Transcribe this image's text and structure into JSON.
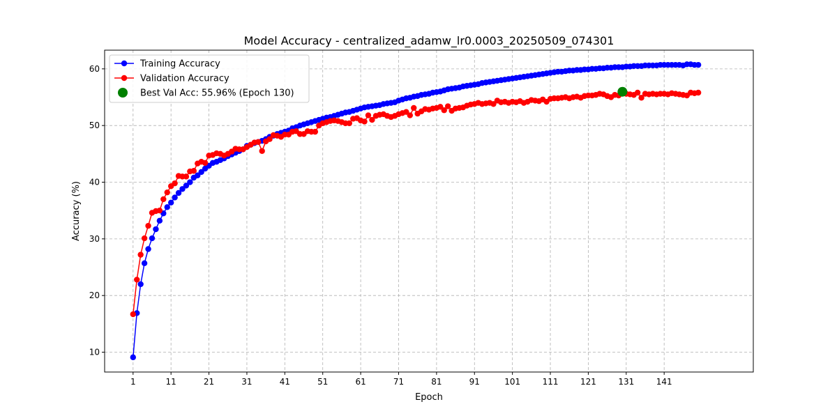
{
  "chart_data": {
    "type": "line",
    "title": "Model Accuracy - centralized_adamw_lr0.0003_20250509_074301",
    "xlabel": "Epoch",
    "ylabel": "Accuracy (%)",
    "xlim": [
      -6.5,
      164.5
    ],
    "ylim": [
      6.5,
      63.3
    ],
    "xticks": [
      1,
      11,
      21,
      31,
      41,
      51,
      61,
      71,
      81,
      91,
      101,
      111,
      121,
      131,
      141
    ],
    "yticks": [
      10,
      20,
      30,
      40,
      50,
      60
    ],
    "grid": true,
    "legend_position": "top-left",
    "series": [
      {
        "name": "Training Accuracy",
        "color": "#0000ff",
        "x": [
          1,
          2,
          3,
          4,
          5,
          6,
          7,
          8,
          9,
          10,
          11,
          12,
          13,
          14,
          15,
          16,
          17,
          18,
          19,
          20,
          21,
          22,
          23,
          24,
          25,
          26,
          27,
          28,
          29,
          30,
          31,
          32,
          33,
          34,
          35,
          36,
          37,
          38,
          39,
          40,
          41,
          42,
          43,
          44,
          45,
          46,
          47,
          48,
          49,
          50,
          51,
          52,
          53,
          54,
          55,
          56,
          57,
          58,
          59,
          60,
          61,
          62,
          63,
          64,
          65,
          66,
          67,
          68,
          69,
          70,
          71,
          72,
          73,
          74,
          75,
          76,
          77,
          78,
          79,
          80,
          81,
          82,
          83,
          84,
          85,
          86,
          87,
          88,
          89,
          90,
          91,
          92,
          93,
          94,
          95,
          96,
          97,
          98,
          99,
          100,
          101,
          102,
          103,
          104,
          105,
          106,
          107,
          108,
          109,
          110,
          111,
          112,
          113,
          114,
          115,
          116,
          117,
          118,
          119,
          120,
          121,
          122,
          123,
          124,
          125,
          126,
          127,
          128,
          129,
          130,
          131,
          132,
          133,
          134,
          135,
          136,
          137,
          138,
          139,
          140,
          141,
          142,
          143,
          144,
          145,
          146,
          147,
          148,
          149,
          150
        ],
        "values": [
          9.1,
          16.9,
          22.0,
          25.7,
          28.2,
          30.1,
          31.7,
          33.2,
          34.5,
          35.6,
          36.4,
          37.3,
          38.1,
          38.8,
          39.4,
          40.0,
          40.8,
          41.2,
          41.8,
          42.4,
          42.9,
          43.4,
          43.6,
          43.9,
          44.2,
          44.6,
          44.9,
          45.2,
          45.5,
          45.8,
          46.4,
          46.6,
          46.9,
          47.1,
          47.3,
          47.6,
          48.0,
          48.2,
          48.5,
          48.7,
          48.9,
          49.1,
          49.5,
          49.7,
          50.0,
          50.2,
          50.4,
          50.6,
          50.8,
          51.0,
          51.2,
          51.4,
          51.5,
          51.7,
          51.9,
          52.1,
          52.3,
          52.4,
          52.6,
          52.8,
          53.0,
          53.2,
          53.3,
          53.4,
          53.5,
          53.6,
          53.8,
          53.9,
          54.0,
          54.1,
          54.4,
          54.6,
          54.8,
          54.9,
          55.1,
          55.2,
          55.4,
          55.5,
          55.6,
          55.8,
          55.9,
          56.0,
          56.2,
          56.4,
          56.5,
          56.6,
          56.7,
          56.9,
          57.0,
          57.1,
          57.2,
          57.3,
          57.5,
          57.6,
          57.7,
          57.8,
          57.9,
          58.0,
          58.1,
          58.2,
          58.3,
          58.4,
          58.5,
          58.6,
          58.7,
          58.8,
          58.9,
          59.0,
          59.1,
          59.2,
          59.3,
          59.4,
          59.5,
          59.5,
          59.6,
          59.7,
          59.7,
          59.8,
          59.8,
          59.9,
          59.9,
          60.0,
          60.0,
          60.1,
          60.1,
          60.2,
          60.2,
          60.3,
          60.3,
          60.3,
          60.4,
          60.4,
          60.5,
          60.5,
          60.5,
          60.6,
          60.6,
          60.6,
          60.6,
          60.7,
          60.7,
          60.7,
          60.7,
          60.7,
          60.7,
          60.6,
          60.8,
          60.8,
          60.7,
          60.7
        ]
      },
      {
        "name": "Validation Accuracy",
        "color": "#ff0000",
        "x": [
          1,
          2,
          3,
          4,
          5,
          6,
          7,
          8,
          9,
          10,
          11,
          12,
          13,
          14,
          15,
          16,
          17,
          18,
          19,
          20,
          21,
          22,
          23,
          24,
          25,
          26,
          27,
          28,
          29,
          30,
          31,
          32,
          33,
          34,
          35,
          36,
          37,
          38,
          39,
          40,
          41,
          42,
          43,
          44,
          45,
          46,
          47,
          48,
          49,
          50,
          51,
          52,
          53,
          54,
          55,
          56,
          57,
          58,
          59,
          60,
          61,
          62,
          63,
          64,
          65,
          66,
          67,
          68,
          69,
          70,
          71,
          72,
          73,
          74,
          75,
          76,
          77,
          78,
          79,
          80,
          81,
          82,
          83,
          84,
          85,
          86,
          87,
          88,
          89,
          90,
          91,
          92,
          93,
          94,
          95,
          96,
          97,
          98,
          99,
          100,
          101,
          102,
          103,
          104,
          105,
          106,
          107,
          108,
          109,
          110,
          111,
          112,
          113,
          114,
          115,
          116,
          117,
          118,
          119,
          120,
          121,
          122,
          123,
          124,
          125,
          126,
          127,
          128,
          129,
          130,
          131,
          132,
          133,
          134,
          135,
          136,
          137,
          138,
          139,
          140,
          141,
          142,
          143,
          144,
          145,
          146,
          147,
          148,
          149,
          150
        ],
        "values": [
          16.7,
          22.8,
          27.2,
          30.1,
          32.3,
          34.6,
          34.9,
          35.0,
          37.0,
          38.2,
          39.3,
          39.8,
          41.1,
          41.0,
          41.0,
          41.9,
          42.0,
          43.3,
          43.6,
          43.4,
          44.7,
          44.8,
          45.1,
          45.0,
          44.7,
          45.0,
          45.4,
          45.9,
          45.8,
          45.8,
          46.2,
          46.6,
          47.0,
          47.1,
          45.5,
          47.2,
          47.6,
          48.3,
          48.2,
          48.0,
          48.4,
          48.4,
          48.9,
          49.0,
          48.5,
          48.5,
          49.0,
          48.9,
          48.9,
          50.0,
          50.4,
          50.6,
          50.8,
          50.9,
          50.8,
          50.6,
          50.4,
          50.4,
          51.2,
          51.3,
          50.9,
          50.7,
          51.8,
          51.0,
          51.7,
          51.9,
          52.0,
          51.7,
          51.5,
          51.7,
          52.0,
          52.2,
          52.4,
          51.8,
          53.1,
          52.1,
          52.5,
          52.9,
          52.8,
          53.0,
          53.1,
          53.3,
          52.7,
          53.4,
          52.6,
          53.0,
          53.1,
          53.2,
          53.5,
          53.7,
          53.8,
          54.0,
          53.8,
          53.9,
          54.0,
          53.8,
          54.4,
          54.1,
          54.2,
          54.0,
          54.2,
          54.1,
          54.3,
          54.0,
          54.2,
          54.5,
          54.4,
          54.3,
          54.6,
          54.2,
          54.7,
          54.8,
          54.8,
          54.9,
          55.0,
          54.8,
          55.0,
          55.1,
          54.9,
          55.2,
          55.3,
          55.3,
          55.4,
          55.6,
          55.5,
          55.2,
          55.0,
          55.4,
          55.3,
          55.96,
          55.6,
          55.5,
          55.4,
          55.8,
          54.9,
          55.6,
          55.5,
          55.6,
          55.5,
          55.6,
          55.6,
          55.5,
          55.7,
          55.6,
          55.5,
          55.4,
          55.3,
          55.8,
          55.7,
          55.8
        ]
      }
    ],
    "annotations": [
      {
        "label": "Best Val Acc: 55.96% (Epoch 130)",
        "x": 130,
        "y": 55.96,
        "color": "#008000"
      }
    ]
  }
}
